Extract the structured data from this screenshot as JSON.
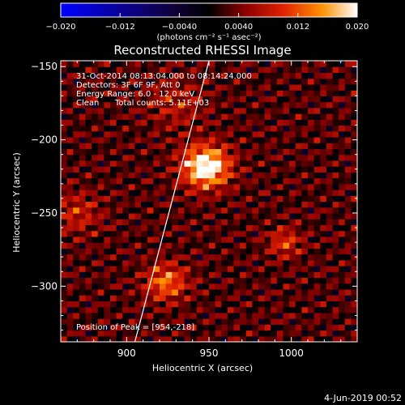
{
  "chart_data": {
    "type": "heatmap",
    "title": "Reconstructed RHESSI Image",
    "xlabel": "Heliocentric X (arcsec)",
    "ylabel": "Heliocentric Y (arcsec)",
    "xlim": [
      860,
      1040
    ],
    "ylim": [
      -338,
      -146
    ],
    "xticks": [
      900,
      950,
      1000
    ],
    "yticks": [
      -300,
      -250,
      -200,
      -150
    ],
    "colorbar": {
      "range": [
        -0.02,
        0.02
      ],
      "ticks": [
        -0.02,
        -0.012,
        -0.004,
        0.004,
        0.012,
        0.02
      ],
      "tick_labels": [
        "−0.020",
        "−0.012",
        "−0.0040",
        "0.0040",
        "0.012",
        "0.020"
      ],
      "unit_label": "(photons cm⁻² s⁻¹ asec⁻²)",
      "colormap": "RHESSI red-temperature"
    },
    "sources": [
      {
        "x": 948,
        "y": -218,
        "peak": 0.02,
        "sigma": 10
      },
      {
        "x": 924,
        "y": -297,
        "peak": 0.011,
        "sigma": 9
      },
      {
        "x": 996,
        "y": -270,
        "peak": 0.008,
        "sigma": 7
      },
      {
        "x": 870,
        "y": -250,
        "peak": 0.006,
        "sigma": 10
      },
      {
        "x": 930,
        "y": -175,
        "peak": 0.005,
        "sigma": 12
      }
    ],
    "background_level": 0.0025,
    "limb": {
      "x_top": 950,
      "x_bottom": 905
    },
    "peak_marker": {
      "x": 954,
      "y": -218
    }
  },
  "annotations": {
    "time_range": "31-Oct-2014 08:13:04.000 to 08:14:24.000",
    "detectors": "Detectors: 3F 6F 9F, Att 0",
    "energy_range": "Energy Range: 6.0 - 12.0 keV",
    "method": "Clean",
    "total_counts": "Total counts: 5.11E+03",
    "peak_position": "Position of Peak = [954,-218]"
  },
  "footer": {
    "date_stamp": "4-Jun-2019 00:52"
  },
  "colors": {
    "background": "#000000",
    "foreground": "#ffffff"
  }
}
